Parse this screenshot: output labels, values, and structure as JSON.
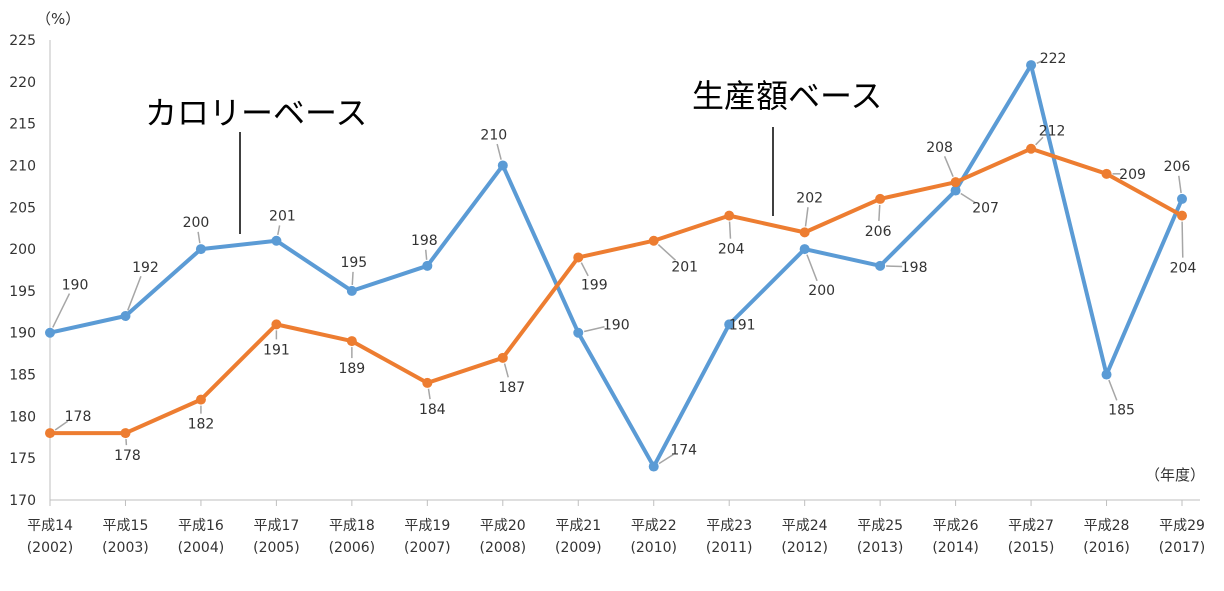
{
  "chart_data": {
    "type": "line",
    "unit_label": "（%）",
    "x_unit_label": "（年度）",
    "ylim": [
      170,
      225
    ],
    "y_ticks": [
      170,
      175,
      180,
      185,
      190,
      195,
      200,
      205,
      210,
      215,
      220,
      225
    ],
    "categories": [
      [
        "平成14",
        "(2002)"
      ],
      [
        "平成15",
        "(2003)"
      ],
      [
        "平成16",
        "(2004)"
      ],
      [
        "平成17",
        "(2005)"
      ],
      [
        "平成18",
        "(2006)"
      ],
      [
        "平成19",
        "(2007)"
      ],
      [
        "平成20",
        "(2008)"
      ],
      [
        "平成21",
        "(2009)"
      ],
      [
        "平成22",
        "(2010)"
      ],
      [
        "平成23",
        "(2011)"
      ],
      [
        "平成24",
        "(2012)"
      ],
      [
        "平成25",
        "(2013)"
      ],
      [
        "平成26",
        "(2014)"
      ],
      [
        "平成27",
        "(2015)"
      ],
      [
        "平成28",
        "(2016)"
      ],
      [
        "平成29",
        "(2017)"
      ]
    ],
    "series": [
      {
        "name": "カロリーベース",
        "color": "#5B9BD5",
        "values": [
          190,
          192,
          200,
          201,
          195,
          198,
          210,
          190,
          174,
          191,
          200,
          198,
          207,
          222,
          185,
          206
        ]
      },
      {
        "name": "生産額ベース",
        "color": "#ED7D31",
        "values": [
          178,
          178,
          182,
          191,
          189,
          184,
          187,
          199,
          201,
          204,
          202,
          206,
          208,
          212,
          209,
          204
        ]
      }
    ],
    "grid": false,
    "legend": "inline annotations"
  }
}
